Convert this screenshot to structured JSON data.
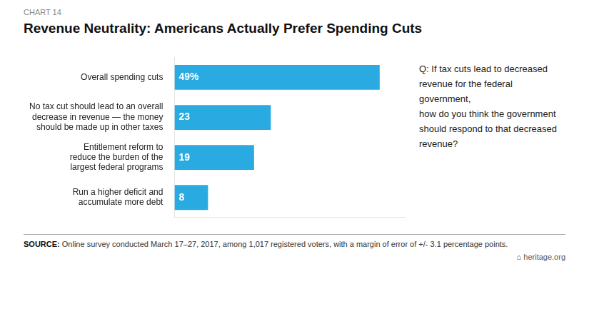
{
  "chart_data": {
    "type": "bar",
    "orientation": "horizontal",
    "subtitle": "CHART 14",
    "title": "Revenue Neutrality: Americans Actually Prefer Spending Cuts",
    "categories": [
      "Overall spending cuts",
      "No tax cut should lead to an overall\ndecrease in revenue — the money\nshould be made up in other taxes",
      "Entitlement reform to\nreduce the burden of the\nlargest federal programs",
      "Run a higher deficit and\naccumulate more debt"
    ],
    "values": [
      49,
      23,
      19,
      8
    ],
    "value_labels": [
      "49%",
      "23",
      "19",
      "8"
    ],
    "data_labels": true,
    "color": "#29ABE2",
    "xlim": [
      0,
      55
    ],
    "grid": false,
    "tick_labels": "y",
    "annotations": [
      "Q: If tax cuts lead to decreased\nrevenue for the federal government,\nhow do you think the government\nshould respond to that decreased\nrevenue?",
      "SOURCE: Online survey conducted March 17–27, 2017, among 1,017 registered voters, with a margin of error of +/- 3.1 percentage points.",
      "⌂ heritage.org"
    ]
  }
}
